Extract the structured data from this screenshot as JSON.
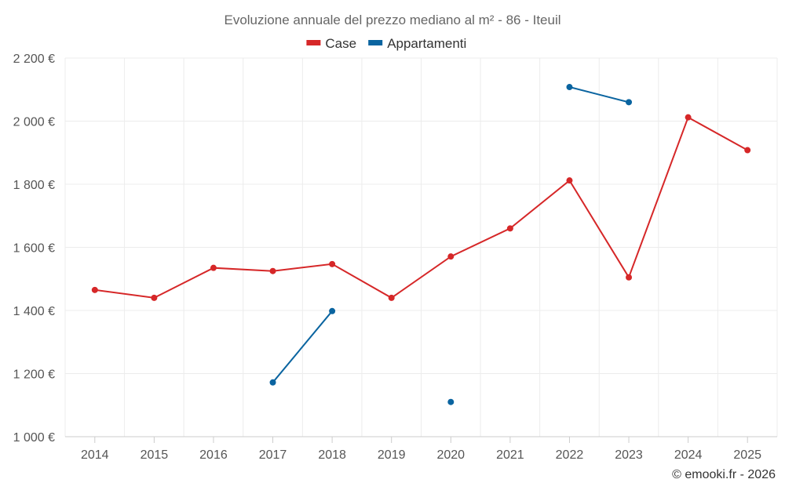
{
  "chart_data": {
    "type": "line",
    "title": "Evoluzione annuale del prezzo mediano al m² - 86 - Iteuil",
    "categories": [
      "2014",
      "2015",
      "2016",
      "2017",
      "2018",
      "2019",
      "2020",
      "2021",
      "2022",
      "2023",
      "2024",
      "2025"
    ],
    "series": [
      {
        "name": "Case",
        "color": "#d62728",
        "values": [
          1465,
          1440,
          1535,
          1525,
          1547,
          1440,
          1571,
          1660,
          1812,
          1505,
          2012,
          1908
        ]
      },
      {
        "name": "Appartamenti",
        "color": "#0a64a0",
        "values": [
          null,
          null,
          null,
          1172,
          1398,
          null,
          1110,
          null,
          2108,
          2060,
          null,
          null
        ]
      }
    ],
    "ylim": [
      1000,
      2200
    ],
    "yticks": [
      1000,
      1200,
      1400,
      1600,
      1800,
      2000,
      2200
    ],
    "ytick_labels": [
      "1 000 €",
      "1 200 €",
      "1 400 €",
      "1 600 €",
      "1 800 €",
      "2 000 €",
      "2 200 €"
    ],
    "xlabel": "",
    "ylabel": "",
    "legend_position": "top-center",
    "grid": true
  },
  "credit": "© emooki.fr - 2026"
}
